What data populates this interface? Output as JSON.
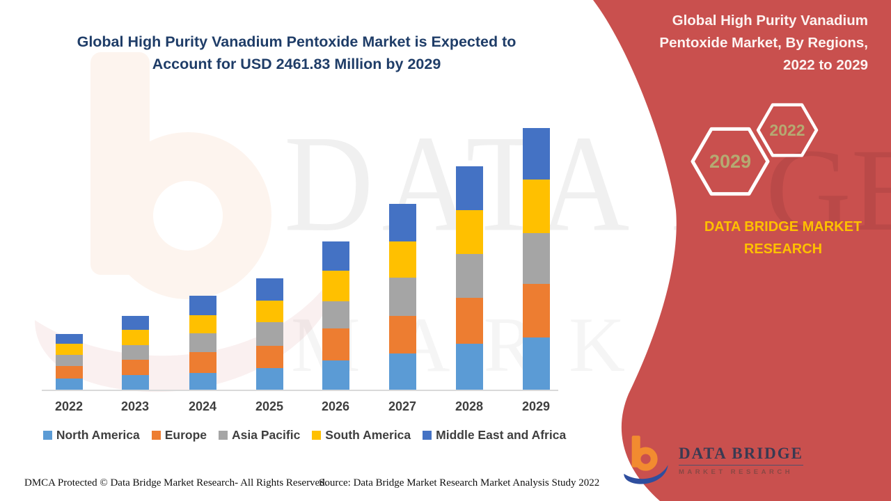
{
  "header": {
    "title": "Global High Purity Vanadium Pentoxide Market is Expected to Account for USD 2461.83 Million by 2029"
  },
  "side_panel": {
    "title": "Global High Purity Vanadium Pentoxide Market, By Regions, 2022 to 2029",
    "hexagons": [
      {
        "label": "2029"
      },
      {
        "label": "2022"
      }
    ],
    "brand_text": "DATA BRIDGE MARKET RESEARCH",
    "logo": {
      "name": "DATA BRIDGE",
      "subtitle": "MARKET RESEARCH"
    }
  },
  "watermark": {
    "line1": "DATA BRIDGE",
    "line2": "MARKET RESEARCH"
  },
  "footer": {
    "left": "DMCA Protected © Data Bridge Market Research- All Rights Reserved.",
    "right": "Source: Data Bridge Market Research Market Analysis Study 2022"
  },
  "colors": {
    "panel_red": "#C9504E",
    "title_navy": "#1F3D68",
    "brand_yellow": "#FFC000",
    "hexagon_year_text": "#B5AA72",
    "axis_gray": "#D9D9D9",
    "label_gray": "#3F3F3F"
  },
  "chart_data": {
    "type": "bar",
    "stacked": true,
    "unit": "USD Million",
    "categories": [
      "2022",
      "2023",
      "2024",
      "2025",
      "2026",
      "2027",
      "2028",
      "2029"
    ],
    "series": [
      {
        "name": "North America",
        "color": "#5B9BD5",
        "values": [
          105,
          137,
          157,
          203,
          275,
          340,
          432,
          491
        ]
      },
      {
        "name": "Europe",
        "color": "#ED7D31",
        "values": [
          118,
          144,
          196,
          210,
          301,
          354,
          432,
          504
        ]
      },
      {
        "name": "Asia Pacific",
        "color": "#A5A5A5",
        "values": [
          105,
          137,
          177,
          223,
          255,
          360,
          413,
          478
        ]
      },
      {
        "name": "South America",
        "color": "#FFC000",
        "values": [
          105,
          144,
          170,
          203,
          288,
          340,
          413,
          504
        ]
      },
      {
        "name": "Middle East and Africa",
        "color": "#4472C4",
        "values": [
          92,
          131,
          183,
          210,
          275,
          354,
          413,
          485
        ]
      }
    ],
    "totals": [
      525,
      693,
      883,
      1049,
      1394,
      1748,
      2103,
      2462
    ],
    "ylim": [
      0,
      2600
    ],
    "grid": false,
    "value_axis_visible": false,
    "legend_position": "bottom"
  }
}
